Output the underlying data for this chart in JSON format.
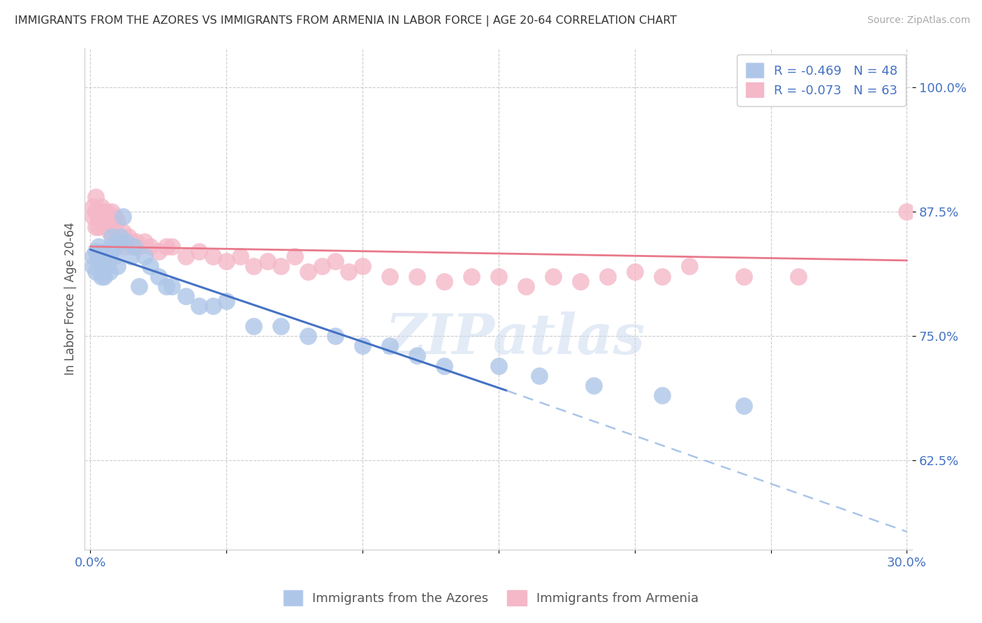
{
  "title": "IMMIGRANTS FROM THE AZORES VS IMMIGRANTS FROM ARMENIA IN LABOR FORCE | AGE 20-64 CORRELATION CHART",
  "source": "Source: ZipAtlas.com",
  "xlabel_ticks": [
    0.0,
    0.05,
    0.1,
    0.15,
    0.2,
    0.25,
    0.3
  ],
  "xlabel_labels": [
    "0.0%",
    "",
    "",
    "",
    "",
    "",
    "30.0%"
  ],
  "ylabel_ticks": [
    0.625,
    0.75,
    0.875,
    1.0
  ],
  "ylabel_labels": [
    "62.5%",
    "75.0%",
    "87.5%",
    "100.0%"
  ],
  "xlim": [
    -0.002,
    0.302
  ],
  "ylim": [
    0.535,
    1.04
  ],
  "ylabel": "In Labor Force | Age 20-64",
  "azores_color": "#aec6e8",
  "armenia_color": "#f4b8c8",
  "azores_R": -0.469,
  "azores_N": 48,
  "armenia_R": -0.073,
  "armenia_N": 63,
  "legend_label_azores": "R = -0.469   N = 48",
  "legend_label_armenia": "R = -0.073   N = 63",
  "bottom_legend_azores": "Immigrants from the Azores",
  "bottom_legend_armenia": "Immigrants from Armenia",
  "watermark": "ZIPatlas",
  "title_color": "#333333",
  "source_color": "#888888",
  "axis_label_color": "#4472c4",
  "grid_color": "#cccccc",
  "azores_scatter_x": [
    0.001,
    0.001,
    0.002,
    0.002,
    0.003,
    0.003,
    0.004,
    0.004,
    0.005,
    0.005,
    0.005,
    0.006,
    0.006,
    0.007,
    0.007,
    0.008,
    0.008,
    0.009,
    0.01,
    0.01,
    0.011,
    0.012,
    0.013,
    0.015,
    0.016,
    0.018,
    0.02,
    0.022,
    0.025,
    0.028,
    0.03,
    0.035,
    0.04,
    0.045,
    0.05,
    0.06,
    0.07,
    0.08,
    0.09,
    0.1,
    0.11,
    0.12,
    0.13,
    0.15,
    0.165,
    0.185,
    0.21,
    0.24
  ],
  "azores_scatter_y": [
    0.83,
    0.82,
    0.835,
    0.815,
    0.84,
    0.83,
    0.82,
    0.81,
    0.835,
    0.825,
    0.81,
    0.835,
    0.82,
    0.83,
    0.815,
    0.85,
    0.84,
    0.83,
    0.84,
    0.82,
    0.85,
    0.87,
    0.845,
    0.83,
    0.84,
    0.8,
    0.83,
    0.82,
    0.81,
    0.8,
    0.8,
    0.79,
    0.78,
    0.78,
    0.785,
    0.76,
    0.76,
    0.75,
    0.75,
    0.74,
    0.74,
    0.73,
    0.72,
    0.72,
    0.71,
    0.7,
    0.69,
    0.68
  ],
  "armenia_scatter_x": [
    0.001,
    0.001,
    0.002,
    0.002,
    0.002,
    0.003,
    0.003,
    0.004,
    0.004,
    0.005,
    0.005,
    0.006,
    0.006,
    0.007,
    0.007,
    0.008,
    0.008,
    0.009,
    0.009,
    0.01,
    0.01,
    0.011,
    0.012,
    0.013,
    0.014,
    0.015,
    0.016,
    0.017,
    0.018,
    0.02,
    0.022,
    0.025,
    0.028,
    0.03,
    0.035,
    0.04,
    0.045,
    0.05,
    0.055,
    0.06,
    0.065,
    0.07,
    0.075,
    0.08,
    0.085,
    0.09,
    0.095,
    0.1,
    0.11,
    0.12,
    0.13,
    0.14,
    0.15,
    0.16,
    0.17,
    0.18,
    0.19,
    0.2,
    0.21,
    0.22,
    0.24,
    0.26,
    0.3
  ],
  "armenia_scatter_y": [
    0.88,
    0.87,
    0.89,
    0.875,
    0.86,
    0.87,
    0.86,
    0.88,
    0.87,
    0.875,
    0.865,
    0.875,
    0.865,
    0.87,
    0.855,
    0.875,
    0.865,
    0.87,
    0.86,
    0.865,
    0.85,
    0.845,
    0.855,
    0.84,
    0.85,
    0.845,
    0.84,
    0.845,
    0.84,
    0.845,
    0.84,
    0.835,
    0.84,
    0.84,
    0.83,
    0.835,
    0.83,
    0.825,
    0.83,
    0.82,
    0.825,
    0.82,
    0.83,
    0.815,
    0.82,
    0.825,
    0.815,
    0.82,
    0.81,
    0.81,
    0.805,
    0.81,
    0.81,
    0.8,
    0.81,
    0.805,
    0.81,
    0.815,
    0.81,
    0.82,
    0.81,
    0.81,
    0.875
  ],
  "azores_line_x0": 0.0,
  "azores_line_y0": 0.837,
  "azores_line_x1": 0.153,
  "azores_line_y1": 0.695,
  "azores_line_xdash": 0.3,
  "azores_line_ydash": 0.553,
  "armenia_line_x0": 0.0,
  "armenia_line_y0": 0.84,
  "armenia_line_x1": 0.3,
  "armenia_line_y1": 0.826
}
